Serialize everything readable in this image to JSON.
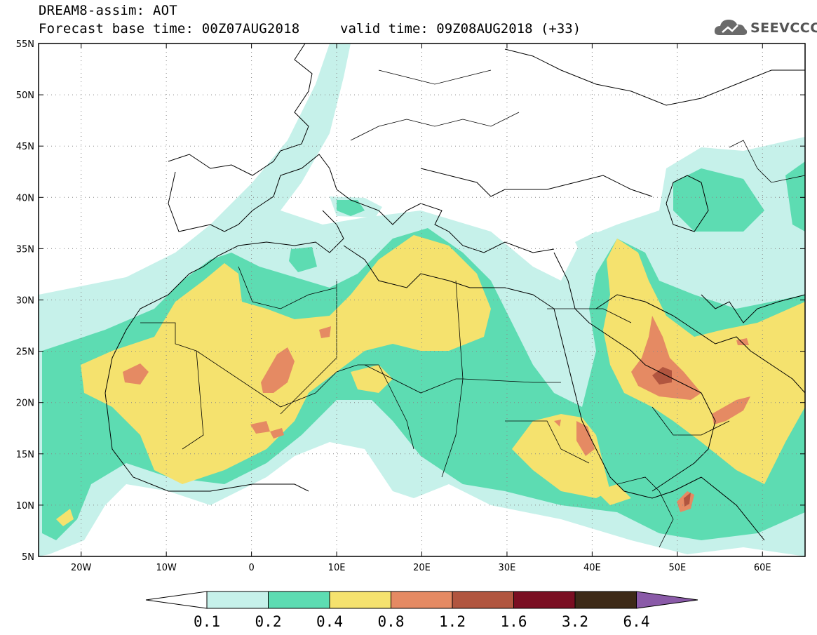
{
  "header": {
    "title": "DREAM8-assim: AOT",
    "base_time": "Forecast base time: 00Z07AUG2018",
    "valid_time": "valid time: 09Z08AUG2018 (+33)"
  },
  "logo": {
    "text": "SEEVCCC",
    "icon": "cloud-icon"
  },
  "map": {
    "lon_range": [
      -25,
      65
    ],
    "lat_range": [
      5,
      55
    ],
    "lat_labels": [
      "55N",
      "50N",
      "45N",
      "40N",
      "35N",
      "30N",
      "25N",
      "20N",
      "15N",
      "10N",
      "5N"
    ],
    "lon_labels": [
      "20W",
      "10W",
      "0",
      "10E",
      "20E",
      "30E",
      "40E",
      "50E",
      "60E"
    ],
    "gridlines": "dotted"
  },
  "colorbar": {
    "levels": [
      "0.1",
      "0.2",
      "0.4",
      "0.8",
      "1.2",
      "1.6",
      "3.2",
      "6.4"
    ],
    "colors": [
      "#c6f1ea",
      "#5ddcb2",
      "#f5e26e",
      "#e58a63",
      "#b1553f",
      "#7a0e22",
      "#3d2a18"
    ],
    "below_color": "#ffffff",
    "above_color": "#8a5aa8"
  },
  "colors": {
    "c01": "#c6f1ea",
    "c02": "#5ddcb2",
    "c04": "#f5e26e",
    "c08": "#e58a63",
    "c12": "#b1553f",
    "c16": "#7a0e22"
  }
}
